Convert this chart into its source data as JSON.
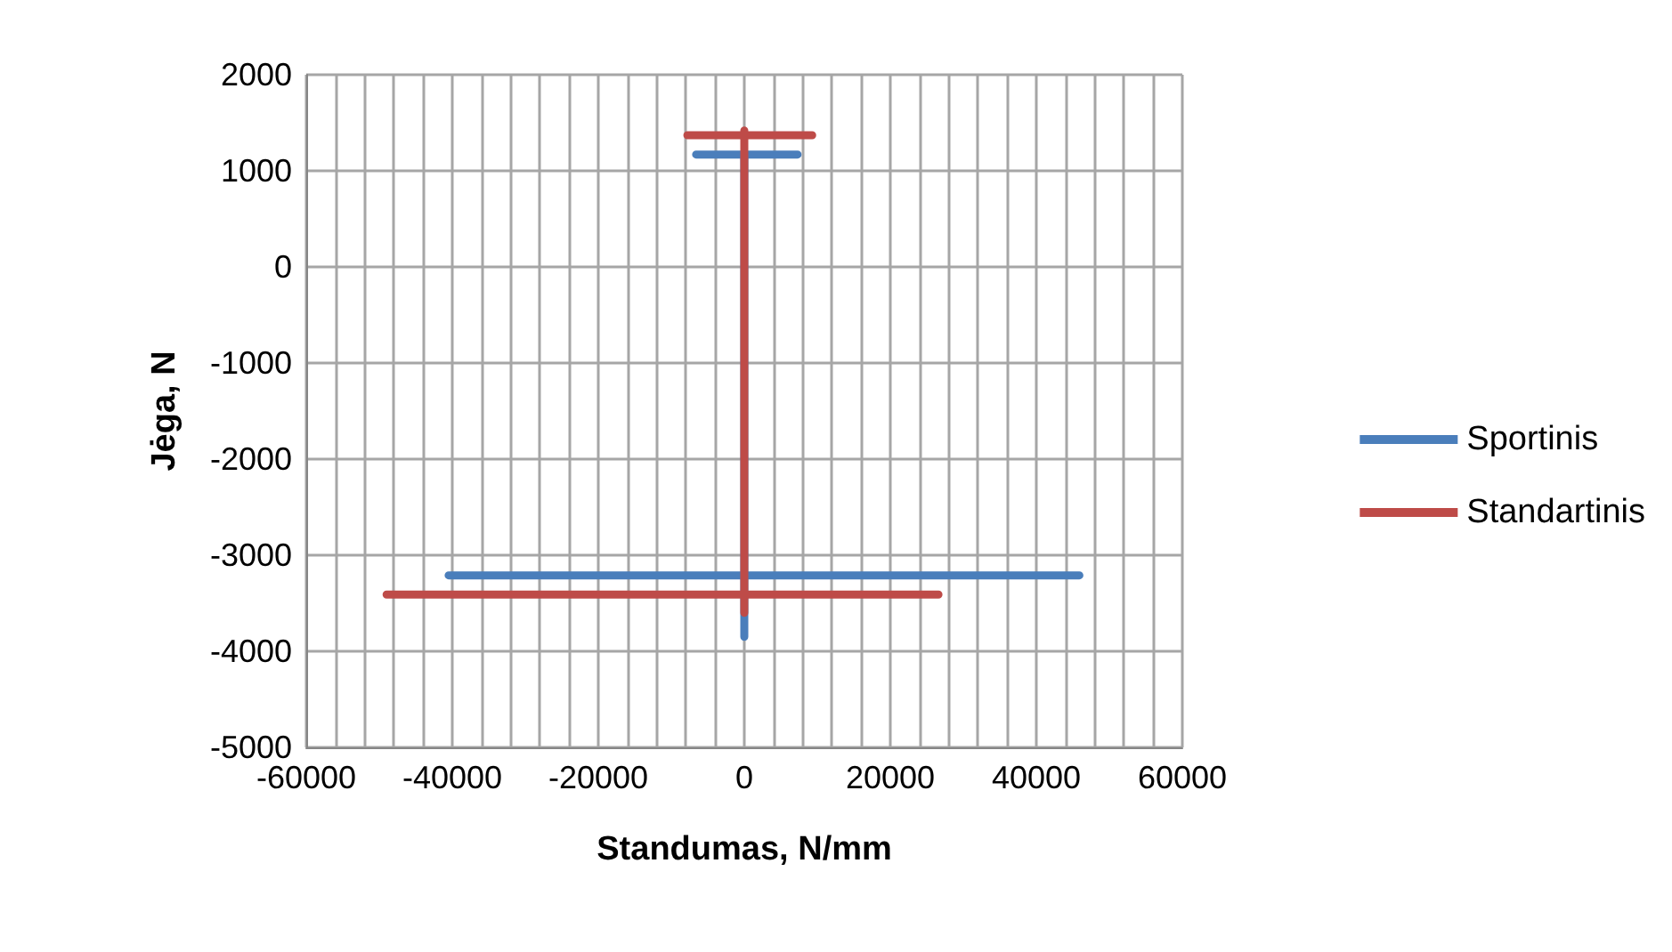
{
  "chart_data": {
    "type": "line",
    "xlabel": "Standumas, N/mm",
    "ylabel": "Jėga, N",
    "xlim": [
      -60000,
      60000
    ],
    "xticks": [
      -60000,
      {
        "value": -56000,
        "label": null
      },
      {
        "value": -52000,
        "label": null
      },
      {
        "value": -48000,
        "label": null
      },
      {
        "value": -44000,
        "label": null
      },
      -40000,
      {
        "value": -36000,
        "label": null
      },
      {
        "value": -32000,
        "label": null
      },
      {
        "value": -28000,
        "label": null
      },
      {
        "value": -24000,
        "label": null
      },
      -20000,
      {
        "value": -16000,
        "label": null
      },
      {
        "value": -12000,
        "label": null
      },
      {
        "value": -8000,
        "label": null
      },
      {
        "value": -4000,
        "label": null
      },
      0,
      {
        "value": 4000,
        "label": null
      },
      {
        "value": 8000,
        "label": null
      },
      {
        "value": 12000,
        "label": null
      },
      {
        "value": 16000,
        "label": null
      },
      20000,
      {
        "value": 24000,
        "label": null
      },
      {
        "value": 28000,
        "label": null
      },
      {
        "value": 32000,
        "label": null
      },
      {
        "value": 36000,
        "label": null
      },
      40000,
      {
        "value": 44000,
        "label": null
      },
      {
        "value": 48000,
        "label": null
      },
      {
        "value": 52000,
        "label": null
      },
      {
        "value": 56000,
        "label": null
      },
      60000
    ],
    "ylim": [
      -5000,
      2000
    ],
    "yticks": [
      -5000,
      -4000,
      -3000,
      -2000,
      -1000,
      0,
      1000,
      2000
    ],
    "grid": true,
    "legend": "right",
    "series": [
      {
        "name": "Sportinis",
        "color": "#4a7ebb",
        "x": [
          -6600,
          7300,
          0,
          0,
          -40500,
          45900,
          0,
          0
        ],
        "values": [
          1170,
          1170,
          1170,
          -3210,
          -3210,
          -3210,
          -3210,
          -3850
        ]
      },
      {
        "name": "Standartinis",
        "color": "#be4b48",
        "x": [
          -7800,
          9300,
          0,
          0,
          0,
          -49000,
          26600,
          0,
          0
        ],
        "values": [
          1370,
          1370,
          1370,
          1420,
          -3410,
          -3410,
          -3410,
          -3410,
          -3600
        ]
      }
    ]
  }
}
